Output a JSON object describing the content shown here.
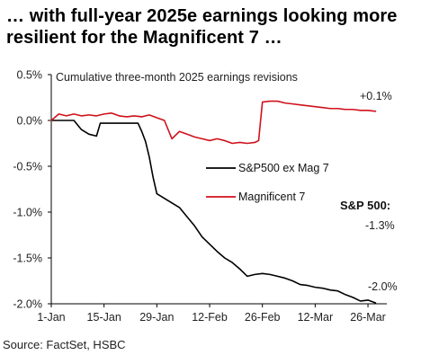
{
  "title": "… with full-year 2025e earnings looking more resilient for the Magnificent 7 …",
  "source": "Source: FactSet, HSBC",
  "chart_data": {
    "type": "line",
    "subtitle": "Cumulative three-month 2025 earnings revisions",
    "ylim": [
      -2.0,
      0.5
    ],
    "yticks": [
      0.5,
      0.0,
      -0.5,
      -1.0,
      -1.5,
      -2.0
    ],
    "ytick_labels": [
      "0.5%",
      "0.0%",
      "-0.5%",
      "-1.0%",
      "-1.5%",
      "-2.0%"
    ],
    "xlim": [
      "2025-01-01",
      "2025-03-31"
    ],
    "xticks": [
      "2025-01-01",
      "2025-01-15",
      "2025-01-29",
      "2025-02-12",
      "2025-02-26",
      "2025-03-12",
      "2025-03-26"
    ],
    "xtick_labels": [
      "1-Jan",
      "15-Jan",
      "29-Jan",
      "12-Feb",
      "26-Feb",
      "12-Mar",
      "26-Mar"
    ],
    "grid": false,
    "legend_position": "center-right",
    "series": [
      {
        "name": "S&P500 ex Mag 7",
        "color": "#000000",
        "points": [
          [
            "2025-01-01",
            0.0
          ],
          [
            "2025-01-03",
            0.0
          ],
          [
            "2025-01-05",
            0.0
          ],
          [
            "2025-01-07",
            0.0
          ],
          [
            "2025-01-09",
            -0.1
          ],
          [
            "2025-01-11",
            -0.15
          ],
          [
            "2025-01-13",
            -0.17
          ],
          [
            "2025-01-14",
            -0.03
          ],
          [
            "2025-01-16",
            -0.03
          ],
          [
            "2025-01-19",
            -0.03
          ],
          [
            "2025-01-22",
            -0.03
          ],
          [
            "2025-01-24",
            -0.03
          ],
          [
            "2025-01-25",
            -0.12
          ],
          [
            "2025-01-26",
            -0.23
          ],
          [
            "2025-01-27",
            -0.4
          ],
          [
            "2025-01-28",
            -0.62
          ],
          [
            "2025-01-29",
            -0.8
          ],
          [
            "2025-01-31",
            -0.85
          ],
          [
            "2025-02-02",
            -0.9
          ],
          [
            "2025-02-04",
            -0.95
          ],
          [
            "2025-02-06",
            -1.05
          ],
          [
            "2025-02-08",
            -1.15
          ],
          [
            "2025-02-10",
            -1.27
          ],
          [
            "2025-02-12",
            -1.35
          ],
          [
            "2025-02-14",
            -1.43
          ],
          [
            "2025-02-16",
            -1.5
          ],
          [
            "2025-02-18",
            -1.55
          ],
          [
            "2025-02-20",
            -1.62
          ],
          [
            "2025-02-22",
            -1.7
          ],
          [
            "2025-02-24",
            -1.68
          ],
          [
            "2025-02-26",
            -1.67
          ],
          [
            "2025-02-28",
            -1.68
          ],
          [
            "2025-03-02",
            -1.7
          ],
          [
            "2025-03-04",
            -1.72
          ],
          [
            "2025-03-06",
            -1.75
          ],
          [
            "2025-03-08",
            -1.79
          ],
          [
            "2025-03-10",
            -1.8
          ],
          [
            "2025-03-12",
            -1.82
          ],
          [
            "2025-03-14",
            -1.83
          ],
          [
            "2025-03-16",
            -1.85
          ],
          [
            "2025-03-18",
            -1.86
          ],
          [
            "2025-03-20",
            -1.9
          ],
          [
            "2025-03-22",
            -1.93
          ],
          [
            "2025-03-24",
            -1.97
          ],
          [
            "2025-03-26",
            -1.96
          ],
          [
            "2025-03-28",
            -1.99
          ]
        ]
      },
      {
        "name": "Magnificent 7",
        "color": "#d0111b",
        "points": [
          [
            "2025-01-01",
            0.0
          ],
          [
            "2025-01-03",
            0.07
          ],
          [
            "2025-01-05",
            0.05
          ],
          [
            "2025-01-07",
            0.07
          ],
          [
            "2025-01-09",
            0.05
          ],
          [
            "2025-01-11",
            0.06
          ],
          [
            "2025-01-13",
            0.05
          ],
          [
            "2025-01-15",
            0.07
          ],
          [
            "2025-01-17",
            0.08
          ],
          [
            "2025-01-19",
            0.05
          ],
          [
            "2025-01-21",
            0.04
          ],
          [
            "2025-01-23",
            0.05
          ],
          [
            "2025-01-25",
            0.04
          ],
          [
            "2025-01-27",
            0.06
          ],
          [
            "2025-01-29",
            0.03
          ],
          [
            "2025-01-31",
            0.0
          ],
          [
            "2025-02-02",
            -0.2
          ],
          [
            "2025-02-04",
            -0.12
          ],
          [
            "2025-02-06",
            -0.15
          ],
          [
            "2025-02-08",
            -0.18
          ],
          [
            "2025-02-10",
            -0.2
          ],
          [
            "2025-02-12",
            -0.22
          ],
          [
            "2025-02-14",
            -0.2
          ],
          [
            "2025-02-16",
            -0.22
          ],
          [
            "2025-02-18",
            -0.25
          ],
          [
            "2025-02-20",
            -0.24
          ],
          [
            "2025-02-22",
            -0.25
          ],
          [
            "2025-02-24",
            -0.24
          ],
          [
            "2025-02-25",
            -0.22
          ],
          [
            "2025-02-26",
            0.2
          ],
          [
            "2025-02-28",
            0.21
          ],
          [
            "2025-03-02",
            0.21
          ],
          [
            "2025-03-04",
            0.19
          ],
          [
            "2025-03-06",
            0.18
          ],
          [
            "2025-03-08",
            0.17
          ],
          [
            "2025-03-10",
            0.16
          ],
          [
            "2025-03-12",
            0.15
          ],
          [
            "2025-03-14",
            0.14
          ],
          [
            "2025-03-16",
            0.13
          ],
          [
            "2025-03-18",
            0.13
          ],
          [
            "2025-03-20",
            0.12
          ],
          [
            "2025-03-22",
            0.12
          ],
          [
            "2025-03-24",
            0.11
          ],
          [
            "2025-03-26",
            0.11
          ],
          [
            "2025-03-28",
            0.1
          ]
        ]
      }
    ],
    "annotations": {
      "mag7_end": "+0.1%",
      "sp_header": "S&P 500:",
      "sp_value": "-1.3%",
      "ex_end": "-2.0%"
    }
  }
}
